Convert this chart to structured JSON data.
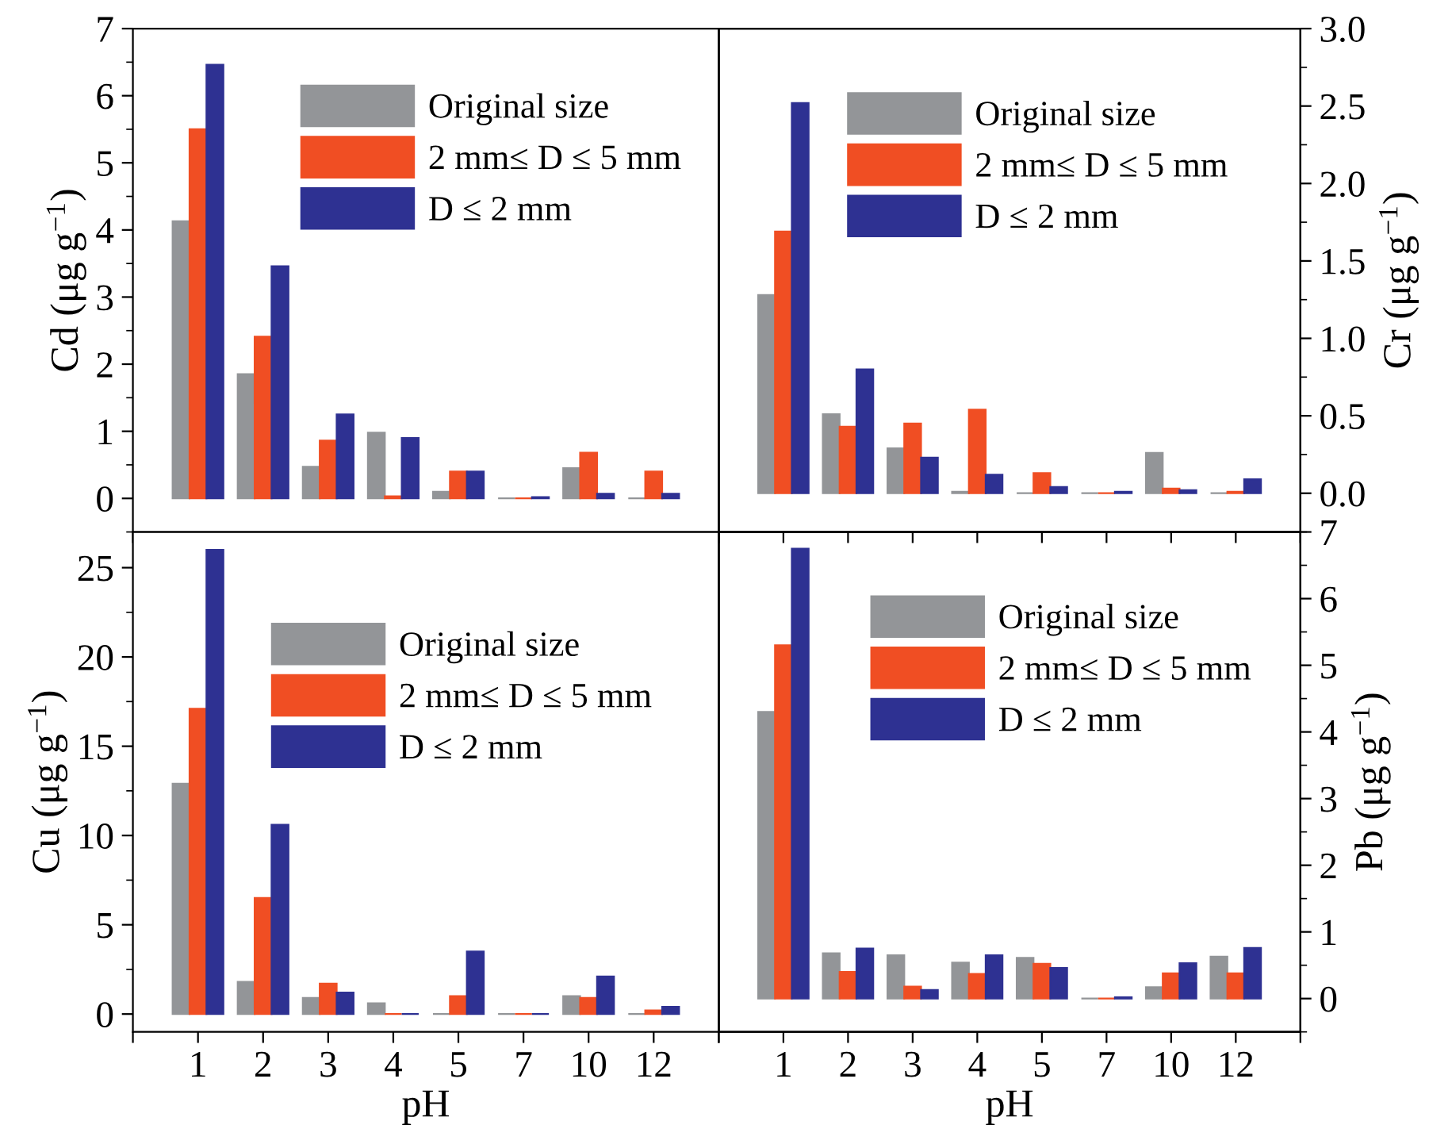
{
  "chart_data": [
    {
      "type": "bar",
      "categories": [
        "1",
        "2",
        "3",
        "4",
        "5",
        "7",
        "10",
        "12"
      ],
      "ylabel": "Cd (μg g$^{−1}$)",
      "ylim": [
        -0.5,
        7
      ],
      "yticks": [
        0,
        1,
        2,
        3,
        4,
        5,
        6,
        7
      ],
      "tick_labels": "y",
      "legend": "top right",
      "series": [
        {
          "name": "Original size",
          "color": "#939598",
          "values": [
            4.13,
            1.85,
            0.47,
            0.98,
            0.1,
            0.0,
            0.45,
            0.0
          ]
        },
        {
          "name": "2 mm≤ D ≤ 5 mm",
          "color": "#f04e23",
          "values": [
            5.5,
            2.41,
            0.86,
            0.03,
            0.4,
            0.0,
            0.68,
            0.4
          ]
        },
        {
          "name": "D ≤ 2 mm",
          "color": "#2e3192",
          "values": [
            6.46,
            3.46,
            1.25,
            0.9,
            0.4,
            0.02,
            0.07,
            0.07
          ]
        }
      ]
    },
    {
      "type": "bar",
      "categories": [
        "1",
        "2",
        "3",
        "4",
        "5",
        "7",
        "10",
        "12"
      ],
      "y2label": "Cr (μg g$^{−1}$)",
      "y2lim": [
        -0.25,
        3.0
      ],
      "y2ticks": [
        {
          "value": 0,
          "label": "0.0"
        },
        0.5,
        {
          "value": 1,
          "label": "1.0"
        },
        1.5,
        {
          "value": 2,
          "label": "2.0"
        },
        2.5,
        {
          "value": 3,
          "label": "3.0"
        }
      ],
      "tick_labels": "y",
      "legend": "top right",
      "series": [
        {
          "name": "Original size",
          "color": "#939598",
          "axis": "y2",
          "values": [
            1.28,
            0.51,
            0.29,
            0.01,
            0.0,
            0.0,
            0.26,
            0.0
          ]
        },
        {
          "name": "2 mm≤ D ≤ 5 mm",
          "color": "#f04e23",
          "axis": "y2",
          "values": [
            1.69,
            0.43,
            0.45,
            0.54,
            0.13,
            0.0,
            0.03,
            0.01
          ]
        },
        {
          "name": "D ≤ 2 mm",
          "color": "#2e3192",
          "axis": "y2",
          "values": [
            2.52,
            0.8,
            0.23,
            0.12,
            0.04,
            0.01,
            0.02,
            0.09
          ]
        }
      ]
    },
    {
      "type": "bar",
      "categories": [
        "1",
        "2",
        "3",
        "4",
        "5",
        "7",
        "10",
        "12"
      ],
      "xlabel": "pH",
      "ylabel": "Cu (μg g$^{−1}$)",
      "ylim": [
        -1,
        27
      ],
      "yticks": [
        0,
        5,
        10,
        15,
        20,
        25
      ],
      "legend": "top right",
      "series": [
        {
          "name": "Original size",
          "color": "#939598",
          "values": [
            12.9,
            1.8,
            0.9,
            0.6,
            0.0,
            0.0,
            1.0,
            0.0
          ]
        },
        {
          "name": "2 mm≤ D ≤ 5 mm",
          "color": "#f04e23",
          "values": [
            17.1,
            6.5,
            1.7,
            0.0,
            1.0,
            0.0,
            0.9,
            0.2
          ]
        },
        {
          "name": "D ≤ 2 mm",
          "color": "#2e3192",
          "values": [
            26.0,
            10.6,
            1.2,
            0.0,
            3.5,
            0.0,
            2.1,
            0.4
          ]
        }
      ]
    },
    {
      "type": "bar",
      "categories": [
        "1",
        "2",
        "3",
        "4",
        "5",
        "7",
        "10",
        "12"
      ],
      "xlabel": "pH",
      "y2label": "Pb (μg g$^{−1}$)",
      "y2lim": [
        -0.5,
        7
      ],
      "y2ticks": [
        0,
        1,
        2,
        3,
        4,
        5,
        6,
        7
      ],
      "legend": "top right",
      "series": [
        {
          "name": "Original size",
          "color": "#939598",
          "axis": "y2",
          "values": [
            4.3,
            0.68,
            0.65,
            0.54,
            0.61,
            0.0,
            0.17,
            0.63
          ]
        },
        {
          "name": "2 mm≤ D ≤ 5 mm",
          "color": "#f04e23",
          "axis": "y2",
          "values": [
            5.3,
            0.4,
            0.18,
            0.37,
            0.52,
            0.0,
            0.38,
            0.38
          ]
        },
        {
          "name": "D ≤ 2 mm",
          "color": "#2e3192",
          "axis": "y2",
          "values": [
            6.75,
            0.75,
            0.13,
            0.65,
            0.46,
            0.02,
            0.53,
            0.76
          ]
        }
      ]
    }
  ]
}
